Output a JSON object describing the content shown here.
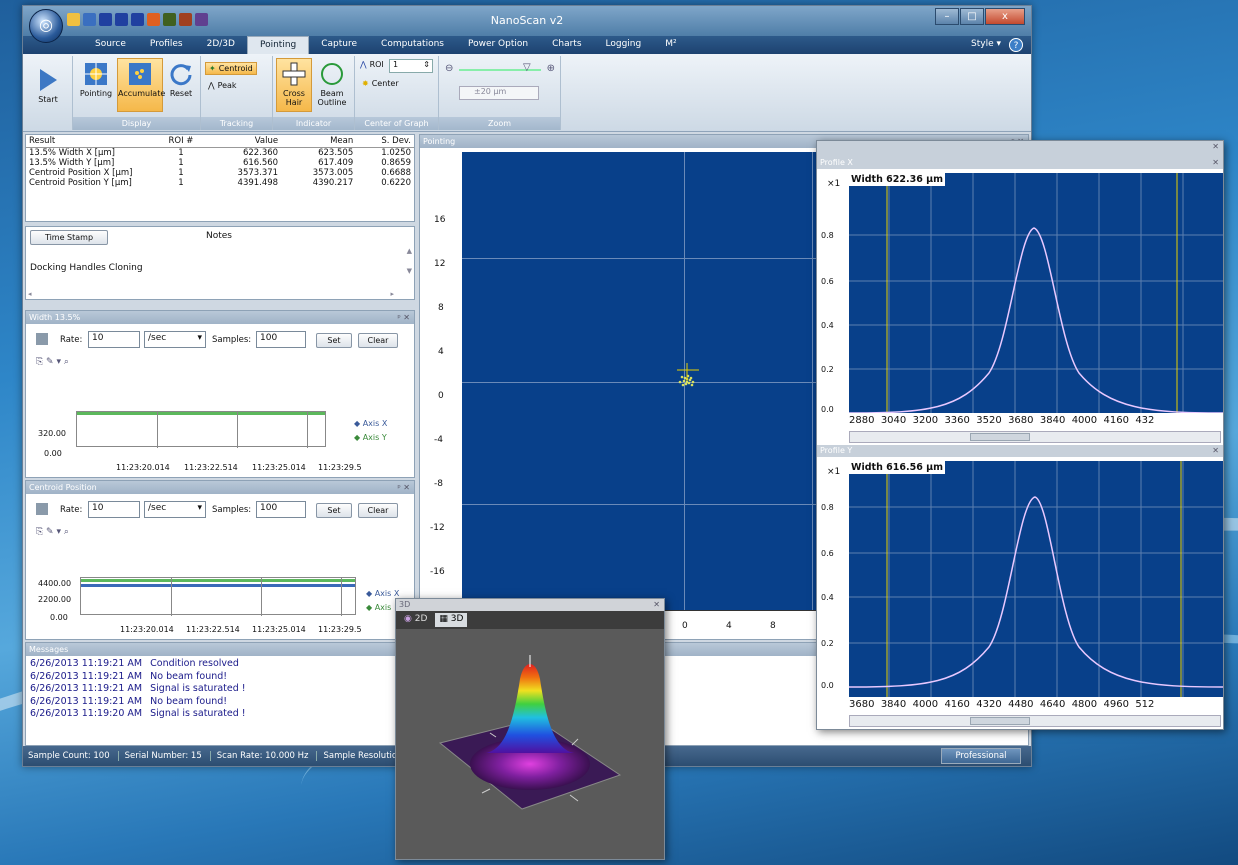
{
  "app": {
    "title": "NanoScan v2",
    "orb_glyph": "◎",
    "window_buttons": {
      "minimize": "–",
      "maximize": "□",
      "close": "x"
    }
  },
  "menu_tabs": [
    "Source",
    "Profiles",
    "2D/3D",
    "Pointing",
    "Capture",
    "Computations",
    "Power Option",
    "Charts",
    "Logging",
    "M²"
  ],
  "active_tab": "Pointing",
  "style_label": "Style ▾",
  "help_glyph": "?",
  "ribbon": {
    "start": "Start",
    "display": {
      "label": "Display",
      "pointing": "Pointing",
      "accumulate": "Accumulate",
      "reset": "Reset"
    },
    "tracking": {
      "label": "Tracking",
      "centroid": "Centroid",
      "peak": "Peak"
    },
    "indicator": {
      "label": "Indicator",
      "cross_hair": "Cross Hair",
      "beam_outline": "Beam Outline"
    },
    "center_of_graph": {
      "label": "Center of Graph",
      "roi": "ROI",
      "roi_value": "1",
      "center": "Center"
    },
    "zoom": {
      "label": "Zoom",
      "value": "±20 µm"
    }
  },
  "results": {
    "headers": [
      "Result",
      "ROI #",
      "Value",
      "Mean",
      "S. Dev."
    ],
    "rows": [
      [
        "13.5% Width X [µm]",
        "1",
        "622.360",
        "623.505",
        "1.0250"
      ],
      [
        "13.5% Width Y [µm]",
        "1",
        "616.560",
        "617.409",
        "0.8659"
      ],
      [
        "Centroid Position X [µm]",
        "1",
        "3573.371",
        "3573.005",
        "0.6688"
      ],
      [
        "Centroid Position Y [µm]",
        "1",
        "4391.498",
        "4390.217",
        "0.6220"
      ]
    ]
  },
  "notes": {
    "time_stamp_button": "Time Stamp",
    "header": "Notes",
    "text": "Docking Handles Cloning"
  },
  "width_panel": {
    "title": "Width 13.5%",
    "rate_label": "Rate:",
    "rate_value": "10",
    "rate_unit": "/sec",
    "samples_label": "Samples:",
    "samples_value": "100",
    "set": "Set",
    "clear": "Clear",
    "y_ticks": [
      "320.00",
      "0.00"
    ],
    "x_ticks": [
      "11:23:20.014",
      "11:23:22.514",
      "11:23:25.014",
      "11:23:29.5"
    ],
    "legend": [
      "Axis X",
      "Axis Y"
    ]
  },
  "centroid_panel": {
    "title": "Centroid Position",
    "rate_label": "Rate:",
    "rate_value": "10",
    "rate_unit": "/sec",
    "samples_label": "Samples:",
    "samples_value": "100",
    "set": "Set",
    "clear": "Clear",
    "y_ticks": [
      "4400.00",
      "2200.00",
      "0.00"
    ],
    "x_ticks": [
      "11:23:20.014",
      "11:23:22.514",
      "11:23:25.014",
      "11:23:29.5"
    ],
    "legend": [
      "Axis X",
      "Axis"
    ]
  },
  "messages": {
    "title": "Messages",
    "rows": [
      [
        "6/26/2013 11:19:21 AM",
        "Condition resolved"
      ],
      [
        "6/26/2013 11:19:21 AM",
        "No beam found!"
      ],
      [
        "6/26/2013 11:19:21 AM",
        "Signal is saturated !"
      ],
      [
        "6/26/2013 11:19:21 AM",
        "No beam found!"
      ],
      [
        "6/26/2013 11:19:20 AM",
        "Signal is saturated !"
      ]
    ]
  },
  "pointing": {
    "title": "Pointing",
    "y_ticks": [
      "16",
      "12",
      "8",
      "4",
      "0",
      "-4",
      "-8",
      "-12",
      "-16"
    ],
    "x_ticks": [
      "0",
      "4",
      "8"
    ]
  },
  "status": {
    "sample_count": "Sample Count: 100",
    "serial": "Serial Number: 15",
    "scan_rate": "Scan Rate: 10.000 Hz",
    "resolution": "Sample Resolutio",
    "edition": "Professional"
  },
  "profile_x": {
    "title": "Profile X",
    "multiplier": "×1",
    "width_label": "Width 622.36 µm",
    "y_ticks": [
      "0.8",
      "0.6",
      "0.4",
      "0.2",
      "0.0"
    ],
    "x_ticks": [
      "2880",
      "3040",
      "3200",
      "3360",
      "3520",
      "3680",
      "3840",
      "4000",
      "4160",
      "432"
    ]
  },
  "profile_y": {
    "title": "Profile Y",
    "multiplier": "×1",
    "width_label": "Width 616.56 µm",
    "y_ticks": [
      "0.8",
      "0.6",
      "0.4",
      "0.2",
      "0.0"
    ],
    "x_ticks": [
      "3680",
      "3840",
      "4000",
      "4160",
      "4320",
      "4480",
      "4640",
      "4800",
      "4960",
      "512"
    ]
  },
  "view3d": {
    "title": "3D",
    "tab_2d": "2D",
    "tab_3d": "3D"
  },
  "colors": {
    "plot_bg": "#08408a",
    "curve": "#e8c8ff",
    "cursor": "#e8d000",
    "msg_text": "#1a1a8a"
  }
}
